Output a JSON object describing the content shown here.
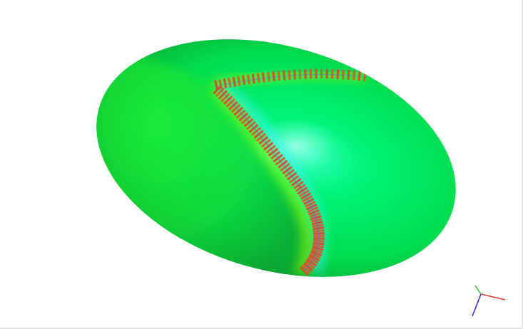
{
  "viewport": {
    "background_color": "#ffffff",
    "surface_color": "#00f06a",
    "surface_shadow_color": "#0b9a2a",
    "highlight_color": "#46ffe0",
    "seam_color": "#e4412f",
    "seam_glow_color": "#7cff00",
    "seam_blue_color": "#4b66ff"
  },
  "axes_triad": {
    "x_color": "#e53935",
    "y_color": "#43c943",
    "z_color": "#2d36d8",
    "icon": "axes-triad-icon"
  }
}
